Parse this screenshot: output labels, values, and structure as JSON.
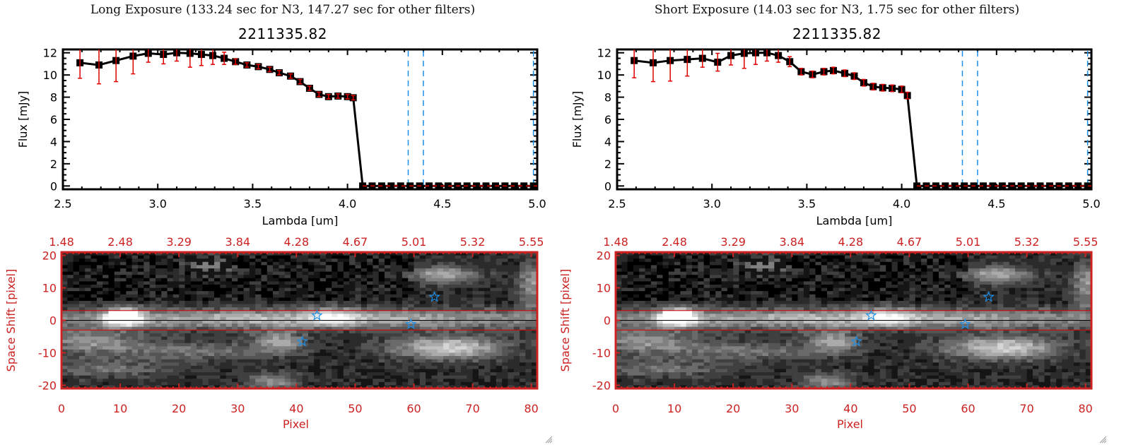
{
  "panels": [
    {
      "id": "long",
      "exposure_title": "Long Exposure (133.24 sec for N3, 147.27 sec for other filters)",
      "object_id": "2211335.82"
    },
    {
      "id": "short",
      "exposure_title": "Short Exposure (14.03 sec for N3, 1.75 sec for other filters)",
      "object_id": "2211335.82"
    }
  ],
  "colors": {
    "axis": "#000000",
    "errorbar": "#e00000",
    "vline": "#1e8fe6",
    "map_axis": "#cc2222",
    "star": "#1e8fe6",
    "aperture": "#e00000"
  },
  "chart_data": [
    {
      "type": "line",
      "panel": "long",
      "title": "2211335.82",
      "xlabel": "Lambda [um]",
      "ylabel": "Flux [mJy]",
      "xlim": [
        2.5,
        5.0
      ],
      "ylim": [
        -0.3,
        12.3
      ],
      "xticks": [
        "2.5",
        "3.0",
        "3.5",
        "4.0",
        "4.5",
        "5.0"
      ],
      "xtick_values": [
        2.5,
        3.0,
        3.5,
        4.0,
        4.5,
        5.0
      ],
      "yticks": [
        "0",
        "2",
        "4",
        "6",
        "8",
        "10",
        "12"
      ],
      "ytick_values": [
        0,
        2,
        4,
        6,
        8,
        10,
        12
      ],
      "vlines": [
        4.32,
        4.4,
        4.98
      ],
      "series": [
        {
          "name": "flux",
          "x": [
            2.59,
            2.69,
            2.78,
            2.87,
            2.95,
            3.03,
            3.1,
            3.17,
            3.23,
            3.29,
            3.35,
            3.41,
            3.47,
            3.53,
            3.59,
            3.64,
            3.7,
            3.75,
            3.8,
            3.85,
            3.9,
            3.95,
            4.0,
            4.03,
            4.08,
            4.13,
            4.18,
            4.23,
            4.28,
            4.33,
            4.38,
            4.43,
            4.48,
            4.53,
            4.58,
            4.63,
            4.68,
            4.73,
            4.78,
            4.83,
            4.88,
            4.93,
            4.98
          ],
          "y": [
            11.1,
            10.9,
            11.3,
            11.7,
            11.95,
            11.85,
            12.0,
            11.95,
            11.85,
            11.75,
            11.5,
            11.2,
            10.9,
            10.75,
            10.5,
            10.2,
            9.9,
            9.4,
            8.8,
            8.25,
            8.05,
            8.1,
            8.05,
            7.95,
            0,
            0,
            0,
            0,
            0,
            0,
            0,
            0,
            0,
            0,
            0,
            0,
            0,
            0,
            0,
            0,
            0,
            0,
            0
          ],
          "err": [
            1.4,
            1.7,
            1.9,
            1.6,
            0.8,
            0.85,
            0.75,
            1.25,
            1.0,
            0.8,
            0.55,
            0.25,
            0.2,
            0.2,
            0.2,
            0.2,
            0.2,
            0.2,
            0.2,
            0.2,
            0.2,
            0.2,
            0.2,
            0.2,
            0,
            0,
            0,
            0,
            0,
            0,
            0,
            0,
            0,
            0,
            0,
            0,
            0,
            0,
            0,
            0,
            0,
            0,
            0
          ]
        }
      ]
    },
    {
      "type": "heatmap",
      "panel": "long",
      "xlabel": "Pixel",
      "ylabel": "Space Shift [pixel]",
      "xlim": [
        0,
        81
      ],
      "ylim": [
        -21,
        21
      ],
      "xticks": [
        "0",
        "10",
        "20",
        "30",
        "40",
        "50",
        "60",
        "70",
        "80"
      ],
      "xtick_values": [
        0,
        10,
        20,
        30,
        40,
        50,
        60,
        70,
        80
      ],
      "top_xticks": [
        "1.48",
        "2.48",
        "3.29",
        "3.84",
        "4.28",
        "4.67",
        "5.01",
        "5.32",
        "5.55"
      ],
      "yticks": [
        "-20",
        "-10",
        "0",
        "10",
        "20"
      ],
      "ytick_values": [
        -20,
        -10,
        0,
        10,
        20
      ],
      "aperture_lines": [
        3,
        -3
      ],
      "center_line": 0,
      "stars": [
        {
          "x": 63.5,
          "y": 7.2
        },
        {
          "x": 43.5,
          "y": 1.5
        },
        {
          "x": 59.5,
          "y": -1.2
        },
        {
          "x": 41.0,
          "y": -6.5
        }
      ],
      "bright_sources": [
        {
          "x": 10.5,
          "y": 1.0,
          "amp": 1.0,
          "sx": 2.2,
          "sy": 1.8
        },
        {
          "x": 40.0,
          "y": 0.5,
          "amp": 0.55,
          "sx": 40,
          "sy": 2.2
        },
        {
          "x": 46.0,
          "y": 1.0,
          "amp": 0.35,
          "sx": 3,
          "sy": 2
        },
        {
          "x": 25.0,
          "y": 17.0,
          "amp": 0.35,
          "sx": 3,
          "sy": 2
        },
        {
          "x": 65.0,
          "y": 14.0,
          "amp": 0.5,
          "sx": 4,
          "sy": 2
        },
        {
          "x": 66.0,
          "y": -8.5,
          "amp": 0.65,
          "sx": 7,
          "sy": 2.5
        },
        {
          "x": 5.0,
          "y": -6.5,
          "amp": 0.4,
          "sx": 6,
          "sy": 2.5
        },
        {
          "x": 37.0,
          "y": -6.5,
          "amp": 0.45,
          "sx": 3,
          "sy": 2.5
        },
        {
          "x": 22.0,
          "y": -9.5,
          "amp": 0.3,
          "sx": 10,
          "sy": 2
        },
        {
          "x": 36.0,
          "y": -19.0,
          "amp": 0.4,
          "sx": 3,
          "sy": 2
        },
        {
          "x": 8.0,
          "y": -15.0,
          "amp": 0.25,
          "sx": 8,
          "sy": 2
        },
        {
          "x": 80.0,
          "y": 11.0,
          "amp": 0.45,
          "sx": 1.5,
          "sy": 5
        }
      ]
    },
    {
      "type": "line",
      "panel": "short",
      "title": "2211335.82",
      "xlabel": "Lambda [um]",
      "ylabel": "Flux [mJy]",
      "xlim": [
        2.5,
        5.0
      ],
      "ylim": [
        -0.3,
        12.3
      ],
      "xticks": [
        "2.5",
        "3.0",
        "3.5",
        "4.0",
        "4.5",
        "5.0"
      ],
      "xtick_values": [
        2.5,
        3.0,
        3.5,
        4.0,
        4.5,
        5.0
      ],
      "yticks": [
        "0",
        "2",
        "4",
        "6",
        "8",
        "10",
        "12"
      ],
      "ytick_values": [
        0,
        2,
        4,
        6,
        8,
        10,
        12
      ],
      "vlines": [
        4.32,
        4.4,
        4.98
      ],
      "series": [
        {
          "name": "flux",
          "x": [
            2.59,
            2.69,
            2.78,
            2.87,
            2.95,
            3.03,
            3.1,
            3.17,
            3.23,
            3.29,
            3.35,
            3.41,
            3.47,
            3.53,
            3.59,
            3.64,
            3.7,
            3.75,
            3.8,
            3.85,
            3.9,
            3.95,
            4.0,
            4.03,
            4.08,
            4.13,
            4.18,
            4.23,
            4.28,
            4.33,
            4.38,
            4.43,
            4.48,
            4.53,
            4.58,
            4.63,
            4.68,
            4.73,
            4.78,
            4.83,
            4.88,
            4.93,
            4.98
          ],
          "y": [
            11.3,
            11.1,
            11.3,
            11.4,
            11.5,
            11.15,
            11.75,
            11.95,
            12.0,
            12.0,
            11.75,
            11.2,
            10.3,
            10.05,
            10.3,
            10.4,
            10.15,
            9.9,
            9.3,
            8.95,
            8.85,
            8.8,
            8.7,
            8.15,
            0,
            0,
            0,
            0,
            0,
            0,
            0,
            0,
            0,
            0,
            0,
            0,
            0,
            0,
            0,
            0,
            0,
            0,
            0
          ],
          "err": [
            1.55,
            1.7,
            1.85,
            1.5,
            0.8,
            0.8,
            0.85,
            1.35,
            1.05,
            0.75,
            0.6,
            0.45,
            0.3,
            0.3,
            0.3,
            0.3,
            0.3,
            0.3,
            0.3,
            0.3,
            0.3,
            0.3,
            0.3,
            0.3,
            0,
            0,
            0,
            0,
            0,
            0,
            0,
            0,
            0,
            0,
            0,
            0,
            0,
            0,
            0,
            0,
            0,
            0,
            0
          ]
        }
      ]
    },
    {
      "type": "heatmap",
      "panel": "short",
      "xlabel": "Pixel",
      "ylabel": "Space Shift [pixel]",
      "xlim": [
        0,
        81
      ],
      "ylim": [
        -21,
        21
      ],
      "xticks": [
        "0",
        "10",
        "20",
        "30",
        "40",
        "50",
        "60",
        "70",
        "80"
      ],
      "xtick_values": [
        0,
        10,
        20,
        30,
        40,
        50,
        60,
        70,
        80
      ],
      "top_xticks": [
        "1.48",
        "2.48",
        "3.29",
        "3.84",
        "4.28",
        "4.67",
        "5.01",
        "5.32",
        "5.55"
      ],
      "yticks": [
        "-20",
        "-10",
        "0",
        "10",
        "20"
      ],
      "ytick_values": [
        -20,
        -10,
        0,
        10,
        20
      ],
      "aperture_lines": [
        3,
        -3
      ],
      "center_line": 0,
      "stars": [
        {
          "x": 63.5,
          "y": 7.2
        },
        {
          "x": 43.5,
          "y": 1.5
        },
        {
          "x": 59.5,
          "y": -1.2
        },
        {
          "x": 41.0,
          "y": -6.5
        }
      ],
      "bright_sources": [
        {
          "x": 10.5,
          "y": 1.0,
          "amp": 1.0,
          "sx": 2.2,
          "sy": 1.8
        },
        {
          "x": 40.0,
          "y": 0.5,
          "amp": 0.55,
          "sx": 40,
          "sy": 2.2
        },
        {
          "x": 46.0,
          "y": 1.0,
          "amp": 0.35,
          "sx": 3,
          "sy": 2
        },
        {
          "x": 25.0,
          "y": 17.0,
          "amp": 0.35,
          "sx": 3,
          "sy": 2
        },
        {
          "x": 65.0,
          "y": 14.0,
          "amp": 0.5,
          "sx": 4,
          "sy": 2
        },
        {
          "x": 66.0,
          "y": -8.5,
          "amp": 0.65,
          "sx": 7,
          "sy": 2.5
        },
        {
          "x": 5.0,
          "y": -6.5,
          "amp": 0.4,
          "sx": 6,
          "sy": 2.5
        },
        {
          "x": 37.0,
          "y": -6.5,
          "amp": 0.45,
          "sx": 3,
          "sy": 2.5
        },
        {
          "x": 22.0,
          "y": -9.5,
          "amp": 0.3,
          "sx": 10,
          "sy": 2
        },
        {
          "x": 36.0,
          "y": -19.0,
          "amp": 0.4,
          "sx": 3,
          "sy": 2
        },
        {
          "x": 8.0,
          "y": -15.0,
          "amp": 0.25,
          "sx": 8,
          "sy": 2
        },
        {
          "x": 80.0,
          "y": 11.0,
          "amp": 0.45,
          "sx": 1.5,
          "sy": 5
        }
      ]
    }
  ]
}
